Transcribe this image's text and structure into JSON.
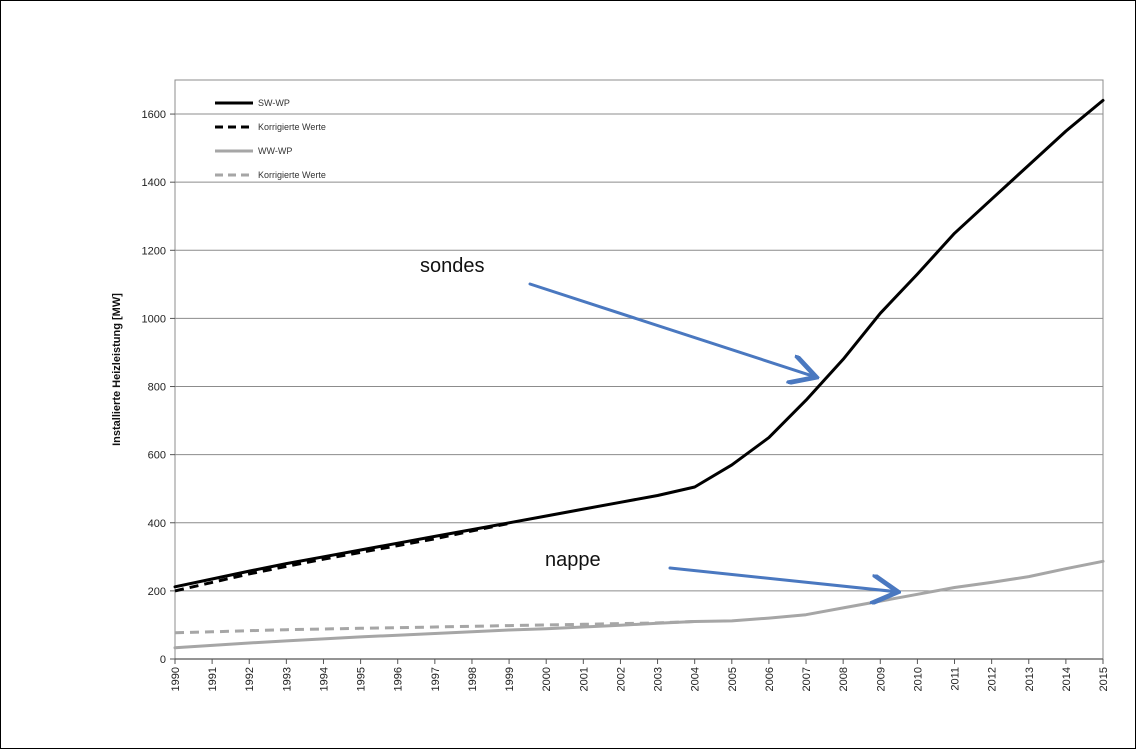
{
  "chart_data": {
    "type": "line",
    "title": "",
    "xlabel": "",
    "ylabel": "Installierte Heizleistung [MW]",
    "x": [
      1990,
      1991,
      1992,
      1993,
      1994,
      1995,
      1996,
      1997,
      1998,
      1999,
      2000,
      2001,
      2002,
      2003,
      2004,
      2005,
      2006,
      2007,
      2008,
      2009,
      2010,
      2011,
      2012,
      2013,
      2014,
      2015
    ],
    "x_tick_labels": [
      "1990",
      "1991",
      "1992",
      "1993",
      "1994",
      "1995",
      "1996",
      "1997",
      "1998",
      "1999",
      "2000",
      "2001",
      "2002",
      "2003",
      "2004",
      "2005",
      "2006",
      "2007",
      "2008",
      "2009",
      "2010",
      "2011",
      "2012",
      "2013",
      "2014",
      "2015"
    ],
    "xlim": [
      1990,
      2015
    ],
    "ylim": [
      0,
      1700
    ],
    "y_ticks": [
      0,
      200,
      400,
      600,
      800,
      1000,
      1200,
      1400,
      1600
    ],
    "y_tick_labels": [
      "0",
      "200",
      "400",
      "600",
      "800",
      "1000",
      "1200",
      "1400",
      "1600"
    ],
    "grid": "horizontal",
    "legend_position": "top-left",
    "series": [
      {
        "name": "SW-WP",
        "color": "#000000",
        "style": "solid",
        "x": [
          1990,
          1991,
          1992,
          1993,
          1994,
          1995,
          1996,
          1997,
          1998,
          1999,
          2000,
          2001,
          2002,
          2003,
          2004,
          2005,
          2006,
          2007,
          2008,
          2009,
          2010,
          2011,
          2012,
          2013,
          2014,
          2015
        ],
        "values": [
          212,
          235,
          258,
          280,
          300,
          320,
          340,
          360,
          380,
          400,
          420,
          440,
          460,
          480,
          505,
          570,
          650,
          760,
          880,
          1015,
          1130,
          1250,
          1350,
          1450,
          1550,
          1640
        ]
      },
      {
        "name": "Korrigierte Werte",
        "color": "#000000",
        "style": "dashed",
        "x": [
          1990,
          1991,
          1992,
          1993,
          1994,
          1995,
          1996,
          1997,
          1998,
          1999
        ],
        "values": [
          200,
          225,
          250,
          272,
          293,
          313,
          333,
          353,
          376,
          398
        ]
      },
      {
        "name": "WW-WP",
        "color": "#a6a6a6",
        "style": "solid",
        "x": [
          1990,
          1991,
          1992,
          1993,
          1994,
          1995,
          1996,
          1997,
          1998,
          1999,
          2000,
          2001,
          2002,
          2003,
          2004,
          2005,
          2006,
          2007,
          2008,
          2009,
          2010,
          2011,
          2012,
          2013,
          2014,
          2015
        ],
        "values": [
          33,
          40,
          47,
          53,
          59,
          65,
          70,
          75,
          80,
          85,
          89,
          94,
          99,
          105,
          110,
          112,
          120,
          130,
          150,
          170,
          190,
          210,
          225,
          242,
          265,
          287
        ]
      },
      {
        "name": "Korrigierte Werte",
        "color": "#a6a6a6",
        "style": "dashed",
        "x": [
          1990,
          1991,
          1992,
          1993,
          1994,
          1995,
          1996,
          1997,
          1998,
          1999,
          2000,
          2001,
          2002,
          2003,
          2004
        ],
        "values": [
          77,
          80,
          83,
          86,
          88,
          90,
          92,
          94,
          96,
          98,
          100,
          102,
          104,
          106,
          110
        ]
      }
    ],
    "annotations": [
      {
        "text": "sondes",
        "arrow_to": [
          2007.2,
          830
        ]
      },
      {
        "text": "nappe",
        "arrow_to": [
          2009.4,
          198
        ]
      }
    ]
  }
}
